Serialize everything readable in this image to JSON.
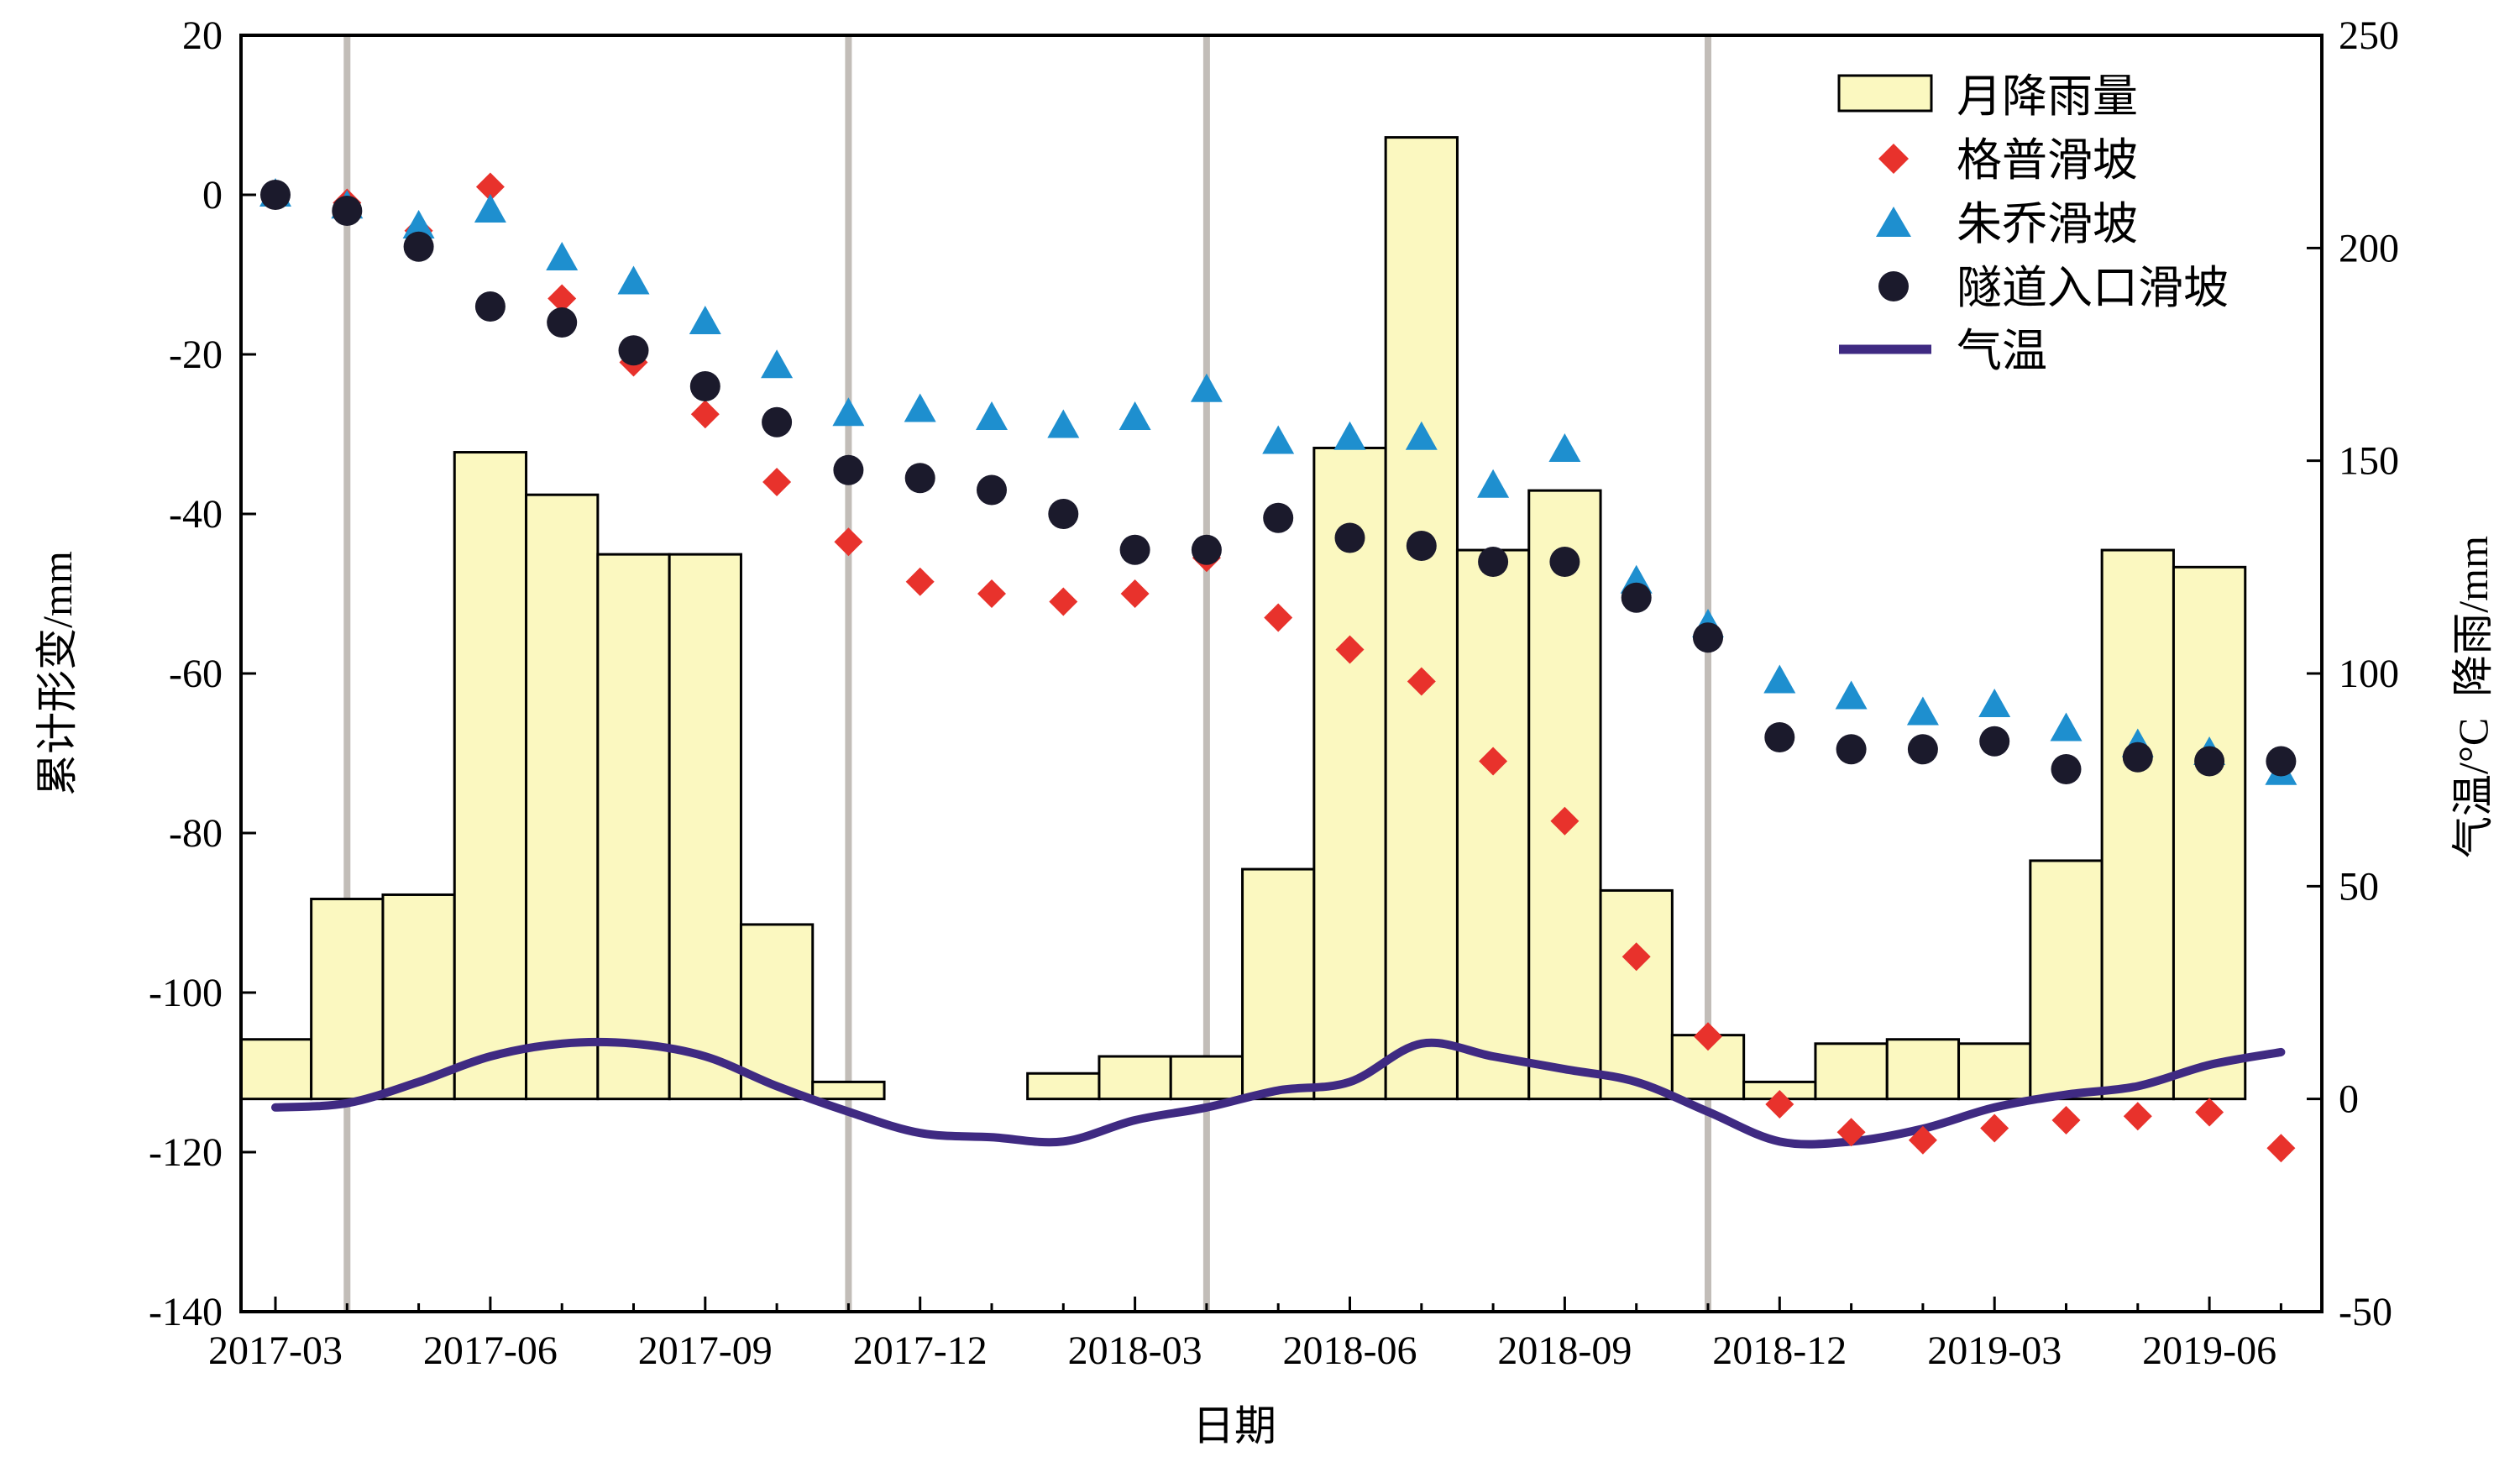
{
  "chart_data": {
    "type": "bar",
    "xlabel": "日期",
    "ylabel_left": "累计形变/mm",
    "ylabel_right": "气温/°C  降雨/mm",
    "ylim_left": [
      -140,
      20
    ],
    "yticks_left": [
      "20",
      "0",
      "-20",
      "-40",
      "-60",
      "-80",
      "-100",
      "-120",
      "-140"
    ],
    "ylim_right": [
      -50,
      250
    ],
    "yticks_right": [
      "250",
      "200",
      "150",
      "100",
      "50",
      "0",
      "-50"
    ],
    "x_tick_labels": [
      "2017-03",
      "2017-06",
      "2017-09",
      "2017-12",
      "2018-03",
      "2018-06",
      "2018-09",
      "2018-12",
      "2019-03",
      "2019-06"
    ],
    "months": [
      "2017-03",
      "2017-04",
      "2017-05",
      "2017-06",
      "2017-07",
      "2017-08",
      "2017-09",
      "2017-10",
      "2017-11",
      "2017-12",
      "2018-01",
      "2018-02",
      "2018-03",
      "2018-04",
      "2018-05",
      "2018-06",
      "2018-07",
      "2018-08",
      "2018-09",
      "2018-10",
      "2018-11",
      "2018-12",
      "2019-01",
      "2019-02",
      "2019-03",
      "2019-04",
      "2019-05",
      "2019-06",
      "2019-07"
    ],
    "vertical_markers": [
      "2017-04",
      "2017-11",
      "2018-04",
      "2018-11"
    ],
    "grid": false,
    "legend_position": "top-right",
    "series": [
      {
        "name": "月降雨量",
        "type": "bar",
        "axis": "right",
        "color": "#fbf8c0",
        "values": [
          14,
          47,
          48,
          152,
          142,
          128,
          128,
          41,
          4,
          null,
          null,
          6,
          10,
          10,
          54,
          153,
          226,
          129,
          143,
          49,
          15,
          4,
          13,
          14,
          13,
          56,
          129,
          125,
          null
        ]
      },
      {
        "name": "格普滑坡",
        "type": "scatter",
        "marker": "diamond",
        "axis": "left",
        "color": "#e8322c",
        "values": [
          0,
          -1,
          -4.5,
          1,
          -13,
          -21,
          -27.5,
          -36,
          -43.5,
          -48.5,
          -50,
          -51,
          -50,
          -45.5,
          -53,
          -57,
          -61,
          -71,
          -78.5,
          -95.5,
          -105.5,
          -114,
          -117.5,
          -118.5,
          -117,
          -116,
          -115.5,
          -115,
          -119.5
        ]
      },
      {
        "name": "朱乔滑坡",
        "type": "scatter",
        "marker": "triangle",
        "axis": "left",
        "color": "#1e8fcf",
        "values": [
          0,
          -1.5,
          -4,
          -2,
          -8,
          -11,
          -16,
          -21.5,
          -27.5,
          -27,
          -28,
          -29,
          -28,
          -24.5,
          -31,
          -30.5,
          -30.5,
          -36.5,
          -32,
          -48.5,
          -54,
          -61,
          -63,
          -65,
          -64,
          -67,
          -69,
          -70,
          -72.5
        ]
      },
      {
        "name": "隧道入口滑坡",
        "type": "scatter",
        "marker": "circle",
        "axis": "left",
        "color": "#1b1a2c",
        "values": [
          0,
          -2,
          -6.5,
          -14,
          -16,
          -19.5,
          -24,
          -28.5,
          -34.5,
          -35.5,
          -37,
          -40,
          -44.5,
          -44.5,
          -40.5,
          -43,
          -44,
          -46,
          -46,
          -50.5,
          -55.5,
          -68,
          -69.5,
          -69.5,
          -68.5,
          -72,
          -70.5,
          -71,
          -71
        ]
      },
      {
        "name": "气温",
        "type": "line",
        "axis": "right",
        "color": "#3f2a82",
        "values": [
          -2,
          -1,
          4,
          10,
          13,
          13,
          10,
          3,
          -3,
          -8,
          -9,
          -10,
          -5,
          -2,
          2,
          4,
          13,
          10,
          7,
          4,
          -3,
          -10,
          -10,
          -7,
          -2,
          1,
          3,
          8,
          11
        ]
      }
    ]
  }
}
